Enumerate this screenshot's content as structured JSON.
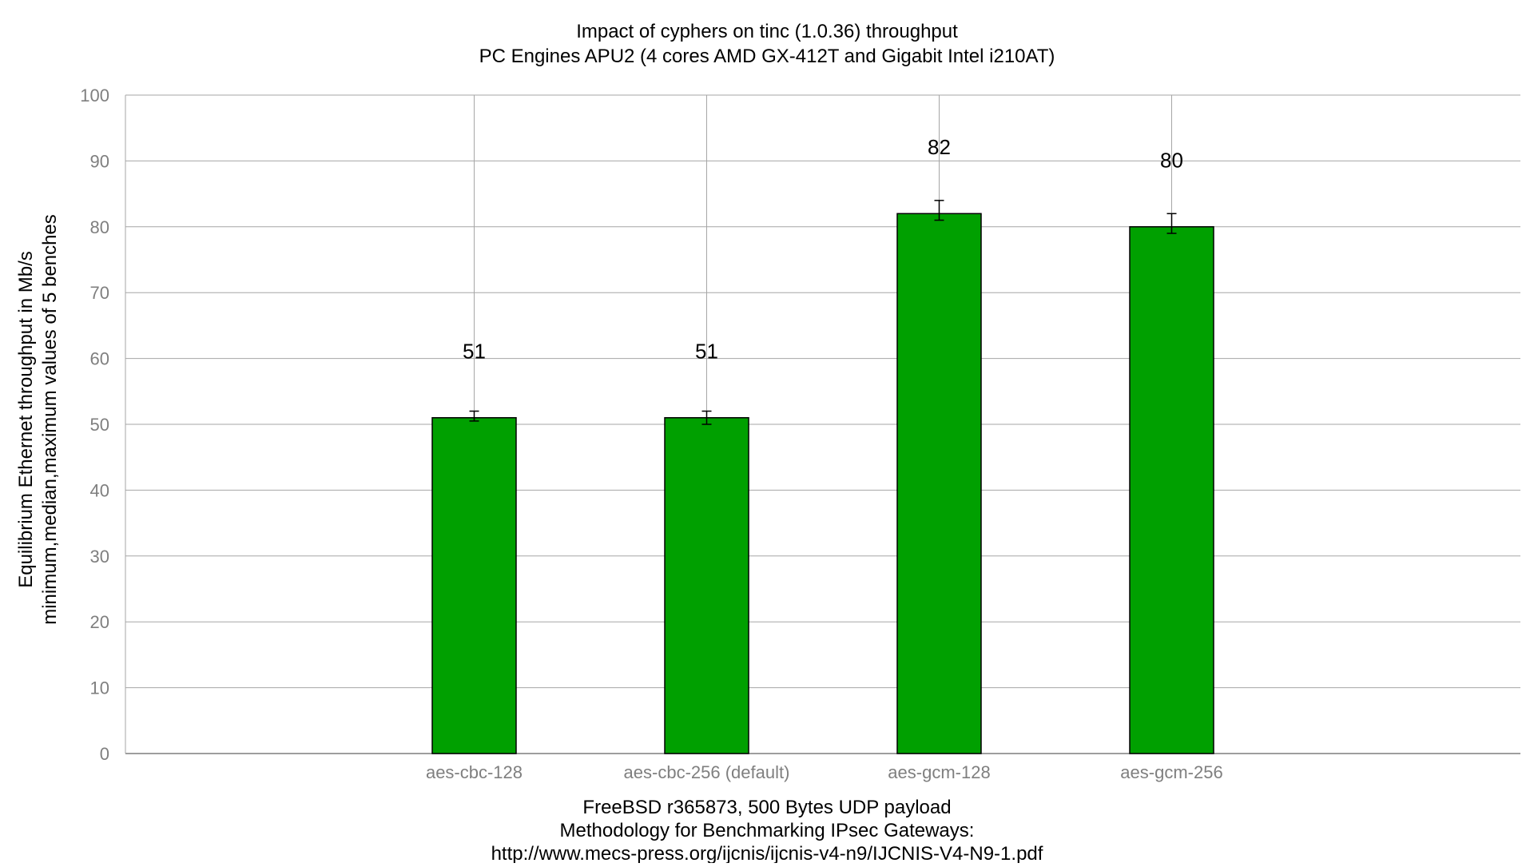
{
  "chart_data": {
    "type": "bar",
    "title": "Impact of cyphers on tinc (1.0.36) throughput",
    "subtitle": "PC Engines APU2 (4 cores AMD GX-412T and Gigabit Intel i210AT)",
    "xlabel_lines": [
      "FreeBSD r365873, 500 Bytes UDP payload",
      "Methodology for Benchmarking IPsec Gateways:",
      "http://www.mecs-press.org/ijcnis/ijcnis-v4-n9/IJCNIS-V4-N9-1.pdf"
    ],
    "ylabel_lines": [
      "Equilibrium Ethernet throughput in Mb/s",
      "minimum,median,maximum values of 5 benches"
    ],
    "categories": [
      "aes-cbc-128",
      "aes-cbc-256 (default)",
      "aes-gcm-128",
      "aes-gcm-256"
    ],
    "values": [
      51,
      51,
      82,
      80
    ],
    "min": [
      50.5,
      50,
      81,
      79
    ],
    "max": [
      52,
      52,
      84,
      82
    ],
    "ylim": [
      0,
      100
    ],
    "yticks": [
      0,
      10,
      20,
      30,
      40,
      50,
      60,
      70,
      80,
      90,
      100
    ],
    "grid": true,
    "bar_color": "#00a000",
    "legend": "none"
  }
}
